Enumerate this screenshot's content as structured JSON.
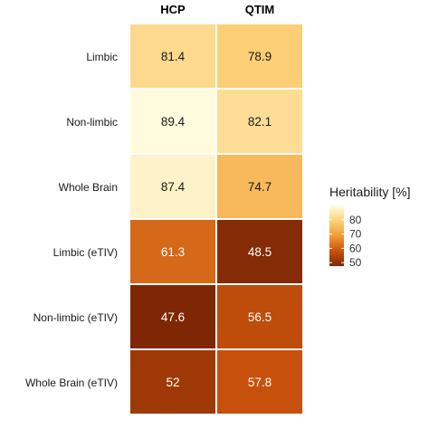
{
  "chart_data": {
    "type": "heatmap",
    "columns": [
      "HCP",
      "QTIM"
    ],
    "rows": [
      "Limbic",
      "Non-limbic",
      "Whole Brain",
      "Limbic (eTIV)",
      "Non-limbic (eTIV)",
      "Whole Brain (eTIV)"
    ],
    "values": [
      [
        81.4,
        78.9
      ],
      [
        89.4,
        82.1
      ],
      [
        87.4,
        74.7
      ],
      [
        61.3,
        48.5
      ],
      [
        47.6,
        56.5
      ],
      [
        52,
        57.8
      ]
    ],
    "value_labels": [
      [
        "81.4",
        "78.9"
      ],
      [
        "89.4",
        "82.1"
      ],
      [
        "87.4",
        "74.7"
      ],
      [
        "61.3",
        "48.5"
      ],
      [
        "47.6",
        "56.5"
      ],
      [
        "52",
        "57.8"
      ]
    ],
    "legend": {
      "title": "Heritability [%]",
      "ticks": [
        80,
        70,
        60,
        50
      ],
      "range": [
        47.6,
        89.4
      ],
      "placement": "right",
      "colors": [
        "#7f2704",
        "#c9520c",
        "#f09a35",
        "#fccf76",
        "#fffbdc"
      ]
    }
  }
}
